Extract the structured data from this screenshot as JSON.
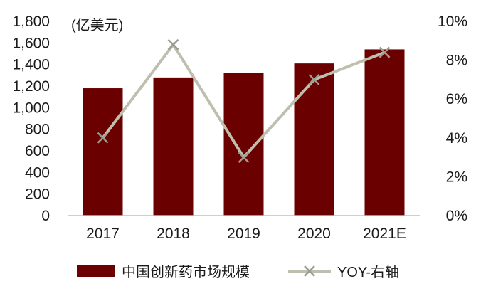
{
  "chart_data": {
    "type": "bar",
    "y_unit_label": "(亿美元)",
    "categories": [
      "2017",
      "2018",
      "2019",
      "2020",
      "2021E"
    ],
    "series": [
      {
        "name": "中国创新药市场规模",
        "type": "bar",
        "axis": "left",
        "color": "#6b0000",
        "values": [
          1180,
          1280,
          1320,
          1410,
          1540
        ]
      },
      {
        "name": "YOY-右轴",
        "type": "line",
        "axis": "right",
        "color": "#bfbfb0",
        "values": [
          4.0,
          8.8,
          3.0,
          7.0,
          8.4
        ]
      }
    ],
    "y_left": {
      "ylim": [
        0,
        1800
      ],
      "ticks": [
        0,
        200,
        400,
        600,
        800,
        1000,
        1200,
        1400,
        1600,
        1800
      ],
      "tick_labels": [
        "0",
        "200",
        "400",
        "600",
        "800",
        "1,000",
        "1,200",
        "1,400",
        "1,600",
        "1,800"
      ]
    },
    "y_right": {
      "ylim": [
        0,
        10
      ],
      "ticks": [
        0,
        2,
        4,
        6,
        8,
        10
      ],
      "tick_labels": [
        "0%",
        "2%",
        "4%",
        "6%",
        "8%",
        "10%"
      ]
    },
    "grid": false,
    "legend_position": "bottom"
  }
}
